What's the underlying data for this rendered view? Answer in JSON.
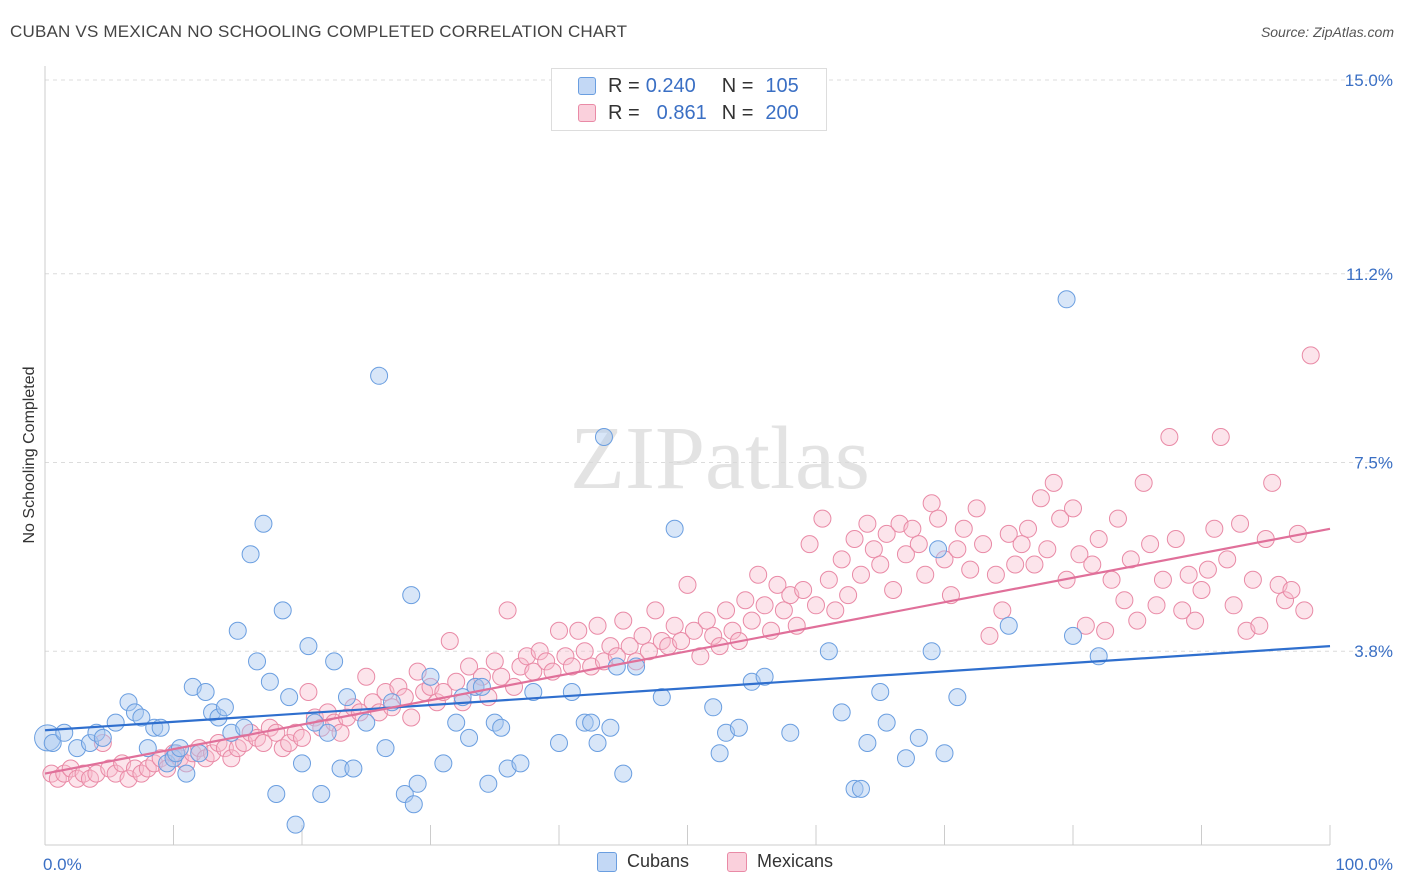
{
  "title": "CUBAN VS MEXICAN NO SCHOOLING COMPLETED CORRELATION CHART",
  "source": "Source: ZipAtlas.com",
  "watermark": "ZIPatlas",
  "legend": {
    "rows": [
      {
        "r_label": "R =",
        "r_value": "0.240",
        "n_label": "N =",
        "n_value": "105",
        "color": "#a9c8f0",
        "border": "#6a9ee0"
      },
      {
        "r_label": "R =",
        "r_value": "0.861",
        "n_label": "N =",
        "n_value": "200",
        "color": "#f7bccd",
        "border": "#e98aa6"
      }
    ]
  },
  "bottom_legend": [
    {
      "label": "Cubans",
      "color": "#a9c8f0",
      "border": "#6a9ee0"
    },
    {
      "label": "Mexicans",
      "color": "#f7bccd",
      "border": "#e98aa6"
    }
  ],
  "chart_data": {
    "type": "scatter",
    "title": "CUBAN VS MEXICAN NO SCHOOLING COMPLETED CORRELATION CHART",
    "xlabel": "",
    "ylabel": "No Schooling Completed",
    "xlim": [
      0,
      100
    ],
    "ylim": [
      0,
      15
    ],
    "x_tick_labels": [
      "0.0%",
      "100.0%"
    ],
    "y_ticks": [
      3.8,
      7.5,
      11.2,
      15.0
    ],
    "y_tick_labels": [
      "3.8%",
      "7.5%",
      "11.2%",
      "15.0%"
    ],
    "grid": true,
    "colors": {
      "cubans": "#6a9ee0",
      "mexicans": "#e98aa6",
      "cubans_line": "#2f6fce",
      "mexicans_line": "#e0709a"
    },
    "series": [
      {
        "name": "Cubans",
        "trend": {
          "x0": 0,
          "y0": 2.25,
          "x1": 100,
          "y1": 3.9
        },
        "points": [
          [
            0.2,
            2.1
          ],
          [
            0.6,
            2.0
          ],
          [
            1.5,
            2.2
          ],
          [
            2.5,
            1.9
          ],
          [
            3.5,
            2.0
          ],
          [
            4,
            2.2
          ],
          [
            4.5,
            2.1
          ],
          [
            5.5,
            2.4
          ],
          [
            6.5,
            2.8
          ],
          [
            7,
            2.6
          ],
          [
            7.5,
            2.5
          ],
          [
            8,
            1.9
          ],
          [
            8.5,
            2.3
          ],
          [
            9,
            2.3
          ],
          [
            9.5,
            1.6
          ],
          [
            10,
            1.7
          ],
          [
            10.2,
            1.8
          ],
          [
            10.5,
            1.9
          ],
          [
            11,
            1.4
          ],
          [
            11.5,
            3.1
          ],
          [
            12,
            1.8
          ],
          [
            12.5,
            3.0
          ],
          [
            13,
            2.6
          ],
          [
            13.5,
            2.5
          ],
          [
            14,
            2.7
          ],
          [
            14.5,
            2.2
          ],
          [
            15,
            4.2
          ],
          [
            15.5,
            2.3
          ],
          [
            16,
            5.7
          ],
          [
            16.5,
            3.6
          ],
          [
            17,
            6.3
          ],
          [
            17.5,
            3.2
          ],
          [
            18,
            1.0
          ],
          [
            18.5,
            4.6
          ],
          [
            19,
            2.9
          ],
          [
            19.5,
            0.4
          ],
          [
            20,
            1.6
          ],
          [
            20.5,
            3.9
          ],
          [
            21,
            2.4
          ],
          [
            21.5,
            1.0
          ],
          [
            22,
            2.2
          ],
          [
            22.5,
            3.6
          ],
          [
            23,
            1.5
          ],
          [
            23.5,
            2.9
          ],
          [
            24,
            1.5
          ],
          [
            25,
            2.4
          ],
          [
            26,
            9.2
          ],
          [
            26.5,
            1.9
          ],
          [
            27,
            2.8
          ],
          [
            28,
            1.0
          ],
          [
            28.5,
            4.9
          ],
          [
            28.7,
            0.8
          ],
          [
            29,
            1.2
          ],
          [
            30,
            3.3
          ],
          [
            31,
            1.6
          ],
          [
            32,
            2.4
          ],
          [
            32.5,
            2.9
          ],
          [
            33,
            2.1
          ],
          [
            33.5,
            3.1
          ],
          [
            34,
            3.1
          ],
          [
            34.5,
            1.2
          ],
          [
            35,
            2.4
          ],
          [
            35.5,
            2.3
          ],
          [
            36,
            1.5
          ],
          [
            37,
            1.6
          ],
          [
            38,
            3.0
          ],
          [
            40,
            2.0
          ],
          [
            41,
            3.0
          ],
          [
            42,
            2.4
          ],
          [
            42.5,
            2.4
          ],
          [
            43,
            2.0
          ],
          [
            43.5,
            8.0
          ],
          [
            44,
            2.3
          ],
          [
            44.5,
            3.5
          ],
          [
            45,
            1.4
          ],
          [
            46,
            3.5
          ],
          [
            48,
            2.9
          ],
          [
            49,
            6.2
          ],
          [
            52,
            2.7
          ],
          [
            52.5,
            1.8
          ],
          [
            53,
            2.2
          ],
          [
            54,
            2.3
          ],
          [
            55,
            3.2
          ],
          [
            56,
            3.3
          ],
          [
            58,
            2.2
          ],
          [
            61,
            3.8
          ],
          [
            62,
            2.6
          ],
          [
            63,
            1.1
          ],
          [
            63.5,
            1.1
          ],
          [
            64,
            2.0
          ],
          [
            65,
            3.0
          ],
          [
            65.5,
            2.4
          ],
          [
            67,
            1.7
          ],
          [
            68,
            2.1
          ],
          [
            69,
            3.8
          ],
          [
            69.5,
            5.8
          ],
          [
            70,
            1.8
          ],
          [
            71,
            2.9
          ],
          [
            75,
            4.3
          ],
          [
            79.5,
            10.7
          ],
          [
            80,
            4.1
          ],
          [
            82,
            3.7
          ]
        ],
        "sizes": {
          "0.2": 30
        }
      },
      {
        "name": "Mexicans",
        "trend": {
          "x0": 0,
          "y0": 1.4,
          "x1": 100,
          "y1": 6.2
        },
        "points": [
          [
            0.5,
            1.4
          ],
          [
            1,
            1.3
          ],
          [
            1.5,
            1.4
          ],
          [
            2,
            1.5
          ],
          [
            2.5,
            1.3
          ],
          [
            3,
            1.4
          ],
          [
            3.5,
            1.3
          ],
          [
            4,
            1.4
          ],
          [
            4.5,
            2.0
          ],
          [
            5,
            1.5
          ],
          [
            5.5,
            1.4
          ],
          [
            6,
            1.6
          ],
          [
            6.5,
            1.3
          ],
          [
            7,
            1.5
          ],
          [
            7.5,
            1.4
          ],
          [
            8,
            1.5
          ],
          [
            8.5,
            1.6
          ],
          [
            9,
            1.7
          ],
          [
            9.5,
            1.5
          ],
          [
            10,
            1.8
          ],
          [
            10.5,
            1.7
          ],
          [
            11,
            1.6
          ],
          [
            11.5,
            1.8
          ],
          [
            12,
            1.9
          ],
          [
            12.5,
            1.7
          ],
          [
            13,
            1.8
          ],
          [
            13.5,
            2.0
          ],
          [
            14,
            1.9
          ],
          [
            14.5,
            1.7
          ],
          [
            15,
            1.9
          ],
          [
            15.5,
            2.0
          ],
          [
            16,
            2.2
          ],
          [
            16.5,
            2.1
          ],
          [
            17,
            2.0
          ],
          [
            17.5,
            2.3
          ],
          [
            18,
            2.2
          ],
          [
            18.5,
            1.9
          ],
          [
            19,
            2.0
          ],
          [
            19.5,
            2.2
          ],
          [
            20,
            2.1
          ],
          [
            20.5,
            3.0
          ],
          [
            21,
            2.5
          ],
          [
            21.5,
            2.3
          ],
          [
            22,
            2.6
          ],
          [
            22.5,
            2.4
          ],
          [
            23,
            2.2
          ],
          [
            23.5,
            2.5
          ],
          [
            24,
            2.7
          ],
          [
            24.5,
            2.6
          ],
          [
            25,
            3.3
          ],
          [
            25.5,
            2.8
          ],
          [
            26,
            2.6
          ],
          [
            26.5,
            3.0
          ],
          [
            27,
            2.7
          ],
          [
            27.5,
            3.1
          ],
          [
            28,
            2.9
          ],
          [
            28.5,
            2.5
          ],
          [
            29,
            3.4
          ],
          [
            29.5,
            3.0
          ],
          [
            30,
            3.1
          ],
          [
            30.5,
            2.8
          ],
          [
            31,
            3.0
          ],
          [
            31.5,
            4.0
          ],
          [
            32,
            3.2
          ],
          [
            32.5,
            2.8
          ],
          [
            33,
            3.5
          ],
          [
            33.5,
            3.1
          ],
          [
            34,
            3.3
          ],
          [
            34.5,
            2.9
          ],
          [
            35,
            3.6
          ],
          [
            35.5,
            3.3
          ],
          [
            36,
            4.6
          ],
          [
            36.5,
            3.1
          ],
          [
            37,
            3.5
          ],
          [
            37.5,
            3.7
          ],
          [
            38,
            3.4
          ],
          [
            38.5,
            3.8
          ],
          [
            39,
            3.6
          ],
          [
            39.5,
            3.4
          ],
          [
            40,
            4.2
          ],
          [
            40.5,
            3.7
          ],
          [
            41,
            3.5
          ],
          [
            41.5,
            4.2
          ],
          [
            42,
            3.8
          ],
          [
            42.5,
            3.5
          ],
          [
            43,
            4.3
          ],
          [
            43.5,
            3.6
          ],
          [
            44,
            3.9
          ],
          [
            44.5,
            3.7
          ],
          [
            45,
            4.4
          ],
          [
            45.5,
            3.9
          ],
          [
            46,
            3.6
          ],
          [
            46.5,
            4.1
          ],
          [
            47,
            3.8
          ],
          [
            47.5,
            4.6
          ],
          [
            48,
            4.0
          ],
          [
            48.5,
            3.9
          ],
          [
            49,
            4.3
          ],
          [
            49.5,
            4.0
          ],
          [
            50,
            5.1
          ],
          [
            50.5,
            4.2
          ],
          [
            51,
            3.7
          ],
          [
            51.5,
            4.4
          ],
          [
            52,
            4.1
          ],
          [
            52.5,
            3.9
          ],
          [
            53,
            4.6
          ],
          [
            53.5,
            4.2
          ],
          [
            54,
            4.0
          ],
          [
            54.5,
            4.8
          ],
          [
            55,
            4.4
          ],
          [
            55.5,
            5.3
          ],
          [
            56,
            4.7
          ],
          [
            56.5,
            4.2
          ],
          [
            57,
            5.1
          ],
          [
            57.5,
            4.6
          ],
          [
            58,
            4.9
          ],
          [
            58.5,
            4.3
          ],
          [
            59,
            5.0
          ],
          [
            59.5,
            5.9
          ],
          [
            60,
            4.7
          ],
          [
            60.5,
            6.4
          ],
          [
            61,
            5.2
          ],
          [
            61.5,
            4.6
          ],
          [
            62,
            5.6
          ],
          [
            62.5,
            4.9
          ],
          [
            63,
            6.0
          ],
          [
            63.5,
            5.3
          ],
          [
            64,
            6.3
          ],
          [
            64.5,
            5.8
          ],
          [
            65,
            5.5
          ],
          [
            65.5,
            6.1
          ],
          [
            66,
            5.0
          ],
          [
            66.5,
            6.3
          ],
          [
            67,
            5.7
          ],
          [
            67.5,
            6.2
          ],
          [
            68,
            5.9
          ],
          [
            68.5,
            5.3
          ],
          [
            69,
            6.7
          ],
          [
            69.5,
            6.4
          ],
          [
            70,
            5.6
          ],
          [
            70.5,
            4.9
          ],
          [
            71,
            5.8
          ],
          [
            71.5,
            6.2
          ],
          [
            72,
            5.4
          ],
          [
            72.5,
            6.6
          ],
          [
            73,
            5.9
          ],
          [
            73.5,
            4.1
          ],
          [
            74,
            5.3
          ],
          [
            74.5,
            4.6
          ],
          [
            75,
            6.1
          ],
          [
            75.5,
            5.5
          ],
          [
            76,
            5.9
          ],
          [
            76.5,
            6.2
          ],
          [
            77,
            5.5
          ],
          [
            77.5,
            6.8
          ],
          [
            78,
            5.8
          ],
          [
            78.5,
            7.1
          ],
          [
            79,
            6.4
          ],
          [
            79.5,
            5.2
          ],
          [
            80,
            6.6
          ],
          [
            80.5,
            5.7
          ],
          [
            81,
            4.3
          ],
          [
            81.5,
            5.5
          ],
          [
            82,
            6.0
          ],
          [
            82.5,
            4.2
          ],
          [
            83,
            5.2
          ],
          [
            83.5,
            6.4
          ],
          [
            84,
            4.8
          ],
          [
            84.5,
            5.6
          ],
          [
            85,
            4.4
          ],
          [
            85.5,
            7.1
          ],
          [
            86,
            5.9
          ],
          [
            86.5,
            4.7
          ],
          [
            87,
            5.2
          ],
          [
            87.5,
            8.0
          ],
          [
            88,
            6.0
          ],
          [
            88.5,
            4.6
          ],
          [
            89,
            5.3
          ],
          [
            89.5,
            4.4
          ],
          [
            90,
            5.0
          ],
          [
            90.5,
            5.4
          ],
          [
            91,
            6.2
          ],
          [
            91.5,
            8.0
          ],
          [
            92,
            5.6
          ],
          [
            92.5,
            4.7
          ],
          [
            93,
            6.3
          ],
          [
            93.5,
            4.2
          ],
          [
            94,
            5.2
          ],
          [
            94.5,
            4.3
          ],
          [
            95,
            6.0
          ],
          [
            95.5,
            7.1
          ],
          [
            96,
            5.1
          ],
          [
            96.5,
            4.8
          ],
          [
            97,
            5.0
          ],
          [
            97.5,
            6.1
          ],
          [
            98,
            4.6
          ],
          [
            98.5,
            9.6
          ]
        ]
      }
    ]
  }
}
